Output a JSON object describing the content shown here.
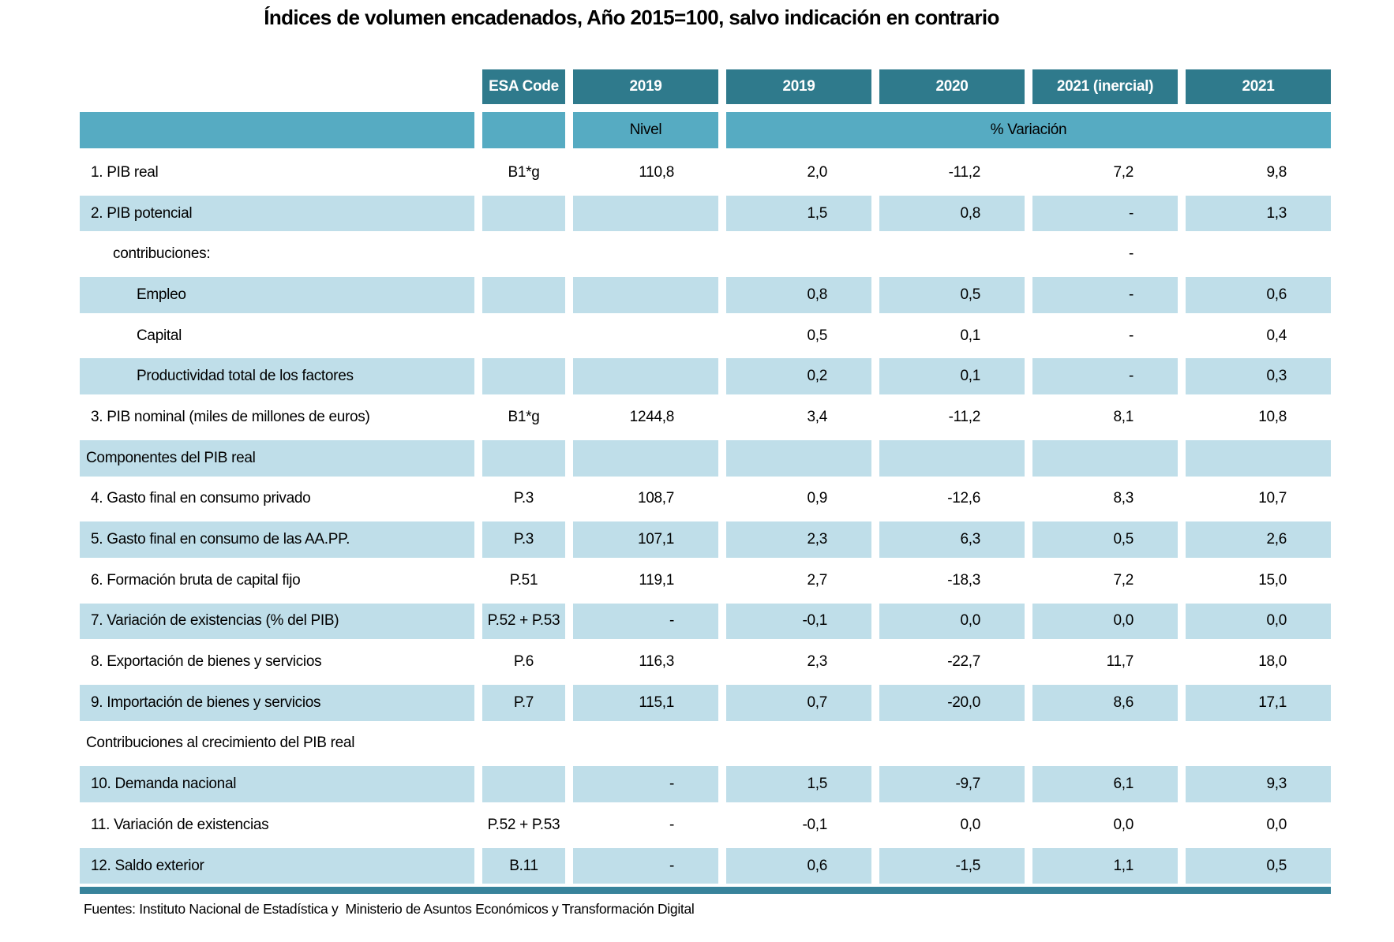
{
  "title": "Índices de volumen encadenados, Año 2015=100, salvo indicación en contrario",
  "table": {
    "column_headers": [
      "ESA Code",
      "2019",
      "2019",
      "2020",
      "2021 (inercial)",
      "2021"
    ],
    "subheader": {
      "nivel": "Nivel",
      "variacion": "% Variación"
    },
    "rows": [
      {
        "label": "1. PIB real",
        "indent": "item",
        "esa": "B1*g",
        "values": [
          "110,8",
          "2,0",
          "-11,2",
          "7,2",
          "9,8"
        ],
        "shaded": false
      },
      {
        "label": "2. PIB potencial",
        "indent": "item",
        "esa": "",
        "values": [
          "",
          "1,5",
          "0,8",
          "-",
          "1,3"
        ],
        "shaded": true
      },
      {
        "label": "contribuciones:",
        "indent": "sub1",
        "esa": "",
        "values": [
          "",
          "",
          "",
          "-",
          ""
        ],
        "shaded": false
      },
      {
        "label": "Empleo",
        "indent": "sub2",
        "esa": "",
        "values": [
          "",
          "0,8",
          "0,5",
          "-",
          "0,6"
        ],
        "shaded": true
      },
      {
        "label": "Capital",
        "indent": "sub2",
        "esa": "",
        "values": [
          "",
          "0,5",
          "0,1",
          "-",
          "0,4"
        ],
        "shaded": false
      },
      {
        "label": "Productividad total de los factores",
        "indent": "sub2",
        "esa": "",
        "values": [
          "",
          "0,2",
          "0,1",
          "-",
          "0,3"
        ],
        "shaded": true
      },
      {
        "label": "3. PIB nominal (miles de millones de euros)",
        "indent": "item",
        "esa": "B1*g",
        "values": [
          "1244,8",
          "3,4",
          "-11,2",
          "8,1",
          "10,8"
        ],
        "shaded": false
      },
      {
        "label": "Componentes del PIB real",
        "indent": "section",
        "esa": "",
        "values": [
          "",
          "",
          "",
          "",
          ""
        ],
        "shaded": true
      },
      {
        "label": "4. Gasto final en consumo privado",
        "indent": "item",
        "esa": "P.3",
        "values": [
          "108,7",
          "0,9",
          "-12,6",
          "8,3",
          "10,7"
        ],
        "shaded": false
      },
      {
        "label": "5. Gasto final en consumo de las AA.PP.",
        "indent": "item",
        "esa": "P.3",
        "values": [
          "107,1",
          "2,3",
          "6,3",
          "0,5",
          "2,6"
        ],
        "shaded": true
      },
      {
        "label": "6. Formación bruta de capital fijo",
        "indent": "item",
        "esa": "P.51",
        "values": [
          "119,1",
          "2,7",
          "-18,3",
          "7,2",
          "15,0"
        ],
        "shaded": false
      },
      {
        "label": "7. Variación de existencias (% del PIB)",
        "indent": "item",
        "esa": "P.52 + P.53",
        "values": [
          "-",
          "-0,1",
          "0,0",
          "0,0",
          "0,0"
        ],
        "shaded": true
      },
      {
        "label": "8. Exportación de bienes y servicios",
        "indent": "item",
        "esa": "P.6",
        "values": [
          "116,3",
          "2,3",
          "-22,7",
          "11,7",
          "18,0"
        ],
        "shaded": false
      },
      {
        "label": "9. Importación de bienes y servicios",
        "indent": "item",
        "esa": "P.7",
        "values": [
          "115,1",
          "0,7",
          "-20,0",
          "8,6",
          "17,1"
        ],
        "shaded": true
      },
      {
        "label": "Contribuciones al crecimiento del PIB real",
        "indent": "section",
        "esa": "",
        "values": [
          "",
          "",
          "",
          "",
          ""
        ],
        "shaded": false
      },
      {
        "label": "10. Demanda nacional",
        "indent": "item",
        "esa": "",
        "values": [
          "-",
          "1,5",
          "-9,7",
          "6,1",
          "9,3"
        ],
        "shaded": true
      },
      {
        "label": "11. Variación de existencias",
        "indent": "item",
        "esa": "P.52 + P.53",
        "values": [
          "-",
          "-0,1",
          "0,0",
          "0,0",
          "0,0"
        ],
        "shaded": false
      },
      {
        "label": "12. Saldo exterior",
        "indent": "item",
        "esa": "B.11",
        "values": [
          "-",
          "0,6",
          "-1,5",
          "1,1",
          "0,5"
        ],
        "shaded": true
      }
    ]
  },
  "footer": "Fuentes: Instituto Nacional de Estadística y  Ministerio de Asuntos Económicos y Transformación Digital",
  "colors": {
    "header_bg": "#2F7A8C",
    "subheader_bg": "#56ABC2",
    "row_shade": "#BFDEE9",
    "bottom_bar": "#38839B",
    "header_text": "#FFFFFF",
    "body_text": "#000000"
  }
}
